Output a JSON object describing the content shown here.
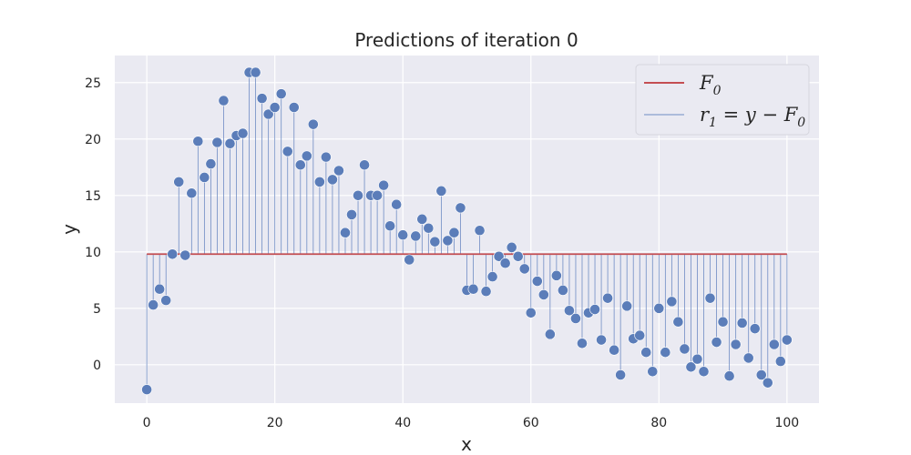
{
  "chart_data": {
    "type": "scatter",
    "title": "Predictions of iteration 0",
    "xlabel": "x",
    "ylabel": "y",
    "xlim": [
      -5,
      105
    ],
    "ylim": [
      -3.4,
      27.4
    ],
    "xticks": [
      0,
      20,
      40,
      60,
      80,
      100
    ],
    "yticks": [
      0,
      5,
      10,
      15,
      20,
      25
    ],
    "grid": true,
    "legend_position": "top-right",
    "colors": {
      "background": "#EAEAF2",
      "grid": "#FFFFFF",
      "points": "#5B7DB9",
      "stems": "#6F8CC4",
      "prediction": "#C44E52"
    },
    "prediction": {
      "name": "F0",
      "value": 9.8
    },
    "residuals_name": "r1 = y − F0",
    "legend": [
      {
        "id": "F0",
        "base": "F",
        "sub": "0",
        "kind": "line"
      },
      {
        "id": "r1",
        "base": "r",
        "sub": "1",
        "rest": " = y − F",
        "sub2": "0",
        "kind": "stem"
      }
    ],
    "x": [
      0,
      1,
      2,
      3,
      4,
      5,
      6,
      7,
      8,
      9,
      10,
      11,
      12,
      13,
      14,
      15,
      16,
      17,
      18,
      19,
      20,
      21,
      22,
      23,
      24,
      25,
      26,
      27,
      28,
      29,
      30,
      31,
      32,
      33,
      34,
      35,
      36,
      37,
      38,
      39,
      40,
      41,
      42,
      43,
      44,
      45,
      46,
      47,
      48,
      49,
      50,
      51,
      52,
      53,
      54,
      55,
      56,
      57,
      58,
      59,
      60,
      61,
      62,
      63,
      64,
      65,
      66,
      67,
      68,
      69,
      70,
      71,
      72,
      73,
      74,
      75,
      76,
      77,
      78,
      79,
      80,
      81,
      82,
      83,
      84,
      85,
      86,
      87,
      88,
      89,
      90,
      91,
      92,
      93,
      94,
      95,
      96,
      97,
      98,
      99,
      100
    ],
    "y": [
      -2.2,
      5.3,
      6.7,
      5.7,
      9.8,
      16.2,
      9.7,
      15.2,
      19.8,
      16.6,
      17.8,
      19.7,
      23.4,
      19.6,
      20.3,
      20.5,
      25.9,
      25.9,
      23.6,
      22.2,
      22.8,
      24.0,
      18.9,
      22.8,
      17.7,
      18.5,
      21.3,
      16.2,
      18.4,
      16.4,
      17.2,
      11.7,
      13.3,
      15.0,
      17.7,
      15.0,
      15.0,
      15.9,
      12.3,
      14.2,
      11.5,
      9.3,
      11.4,
      12.9,
      12.1,
      10.9,
      15.4,
      11.0,
      11.7,
      13.9,
      6.6,
      6.7,
      11.9,
      6.5,
      7.8,
      9.6,
      9.0,
      10.4,
      9.6,
      8.5,
      4.6,
      7.4,
      6.2,
      2.7,
      7.9,
      6.6,
      4.8,
      4.1,
      1.9,
      4.6,
      4.9,
      2.2,
      5.9,
      1.3,
      -0.9,
      5.2,
      2.3,
      2.6,
      1.1,
      -0.6,
      5.0,
      1.1,
      5.6,
      3.8,
      1.4,
      -0.2,
      0.5,
      -0.6,
      5.9,
      2.0,
      3.8,
      -1.0,
      1.8,
      3.7,
      0.6,
      3.2,
      -0.9,
      -1.6,
      1.8,
      0.3,
      2.2
    ]
  }
}
